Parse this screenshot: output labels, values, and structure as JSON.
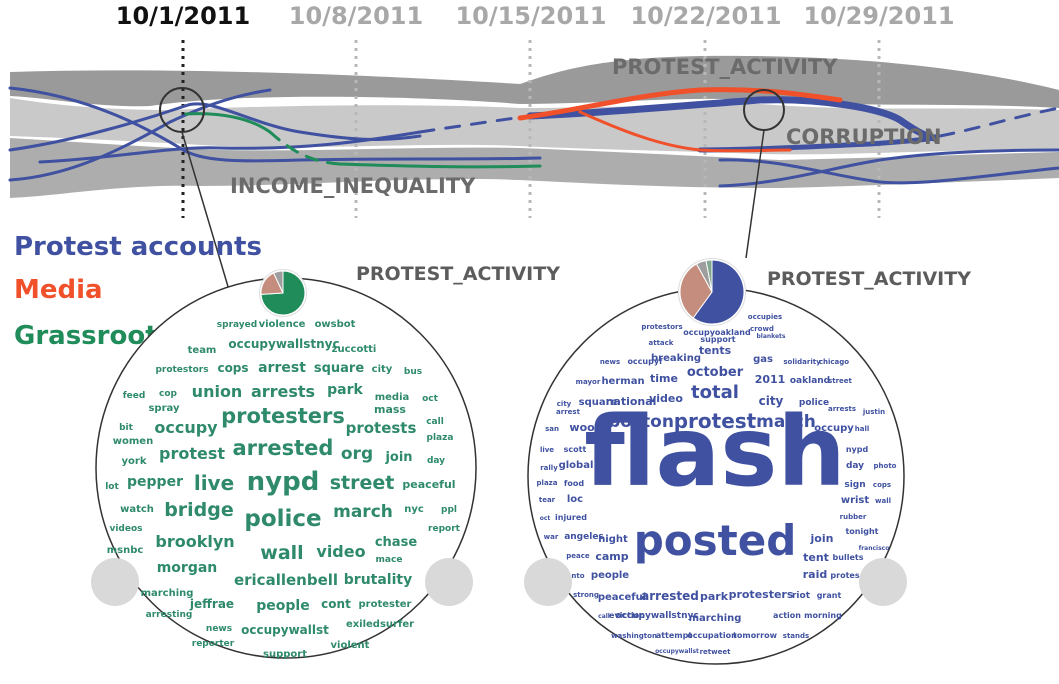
{
  "timeline": {
    "dates": [
      {
        "label": "10/1/2011",
        "active": true
      },
      {
        "label": "10/8/2011",
        "active": false
      },
      {
        "label": "10/15/2011",
        "active": false
      },
      {
        "label": "10/22/2011",
        "active": false
      },
      {
        "label": "10/29/2011",
        "active": false
      }
    ],
    "topics": {
      "protest_activity": "PROTEST_ACTIVITY",
      "corruption": "CORRUPTION",
      "income_inequality": "INCOME_INEQUALITY"
    }
  },
  "legend": {
    "protest_accounts": {
      "label": "Protest accounts",
      "color": "#3f51a0"
    },
    "media": {
      "label": "Media",
      "color": "#f0502a"
    },
    "grassroot": {
      "label": "Grassroot",
      "color": "#1f8c5a"
    }
  },
  "clouds": {
    "left": {
      "title": "PROTEST_ACTIVITY",
      "color": "#2e8a6a",
      "pie_colors": [
        "#1f8c5a",
        "#c48d7e",
        "#9e9e9e"
      ],
      "words": [
        "sprayed",
        "violence",
        "owsbot",
        "occupywallstnyc",
        "zuccotti",
        "team",
        "protestors",
        "cops",
        "arrest",
        "square",
        "city",
        "bus",
        "feed",
        "cop",
        "union",
        "arrests",
        "park",
        "media",
        "spray",
        "mass",
        "oct",
        "protesters",
        "bit",
        "call",
        "occupy",
        "protests",
        "women",
        "plaza",
        "arrested",
        "org",
        "york",
        "protest",
        "join",
        "day",
        "pepper",
        "live",
        "nypd",
        "street",
        "lot",
        "peaceful",
        "watch",
        "bridge",
        "police",
        "march",
        "nyc",
        "ppl",
        "videos",
        "report",
        "brooklyn",
        "chase",
        "msnbc",
        "wall",
        "video",
        "mace",
        "morgan",
        "ericallenbell",
        "brutality",
        "marching",
        "jeffrae",
        "people",
        "cont",
        "protester",
        "arresting",
        "news",
        "occupywallst",
        "exiledsurfer",
        "reporter",
        "support",
        "violent"
      ]
    },
    "right": {
      "title": "PROTEST_ACTIVITY",
      "color": "#3f51a0",
      "pie_colors": [
        "#3f51a0",
        "#c48d7e",
        "#9e9e9e",
        "#7fa88f"
      ],
      "words": [
        "protestors",
        "occupies",
        "occupyoakland",
        "crowd",
        "attack",
        "support",
        "blankets",
        "news",
        "occupyf",
        "breaking",
        "tents",
        "gas",
        "solidarity",
        "chicago",
        "mayor",
        "herman",
        "time",
        "october",
        "2011",
        "oakland",
        "street",
        "city",
        "square",
        "national",
        "video",
        "total",
        "city",
        "police",
        "arrests",
        "arrest",
        "justin",
        "san",
        "wood",
        "boston",
        "protest",
        "march",
        "occupy",
        "hall",
        "live",
        "scott",
        "nypd",
        "rally",
        "global",
        "flash",
        "day",
        "photo",
        "plaza",
        "food",
        "sign",
        "cops",
        "tear",
        "loc",
        "wrist",
        "wall",
        "oct",
        "injured",
        "rubber",
        "war",
        "angeles",
        "night",
        "join",
        "tonight",
        "francisco",
        "peace",
        "camp",
        "posted",
        "tent",
        "bullets",
        "nto",
        "people",
        "raid",
        "protes",
        "strong",
        "peaceful",
        "arrested",
        "park",
        "protesters",
        "riot",
        "grant",
        "call",
        "eviction",
        "occupywallstnyc",
        "marching",
        "action",
        "morning",
        "washington",
        "attempt",
        "occupation",
        "tomorrow",
        "stands",
        "occupywallst",
        "retweet"
      ]
    }
  }
}
